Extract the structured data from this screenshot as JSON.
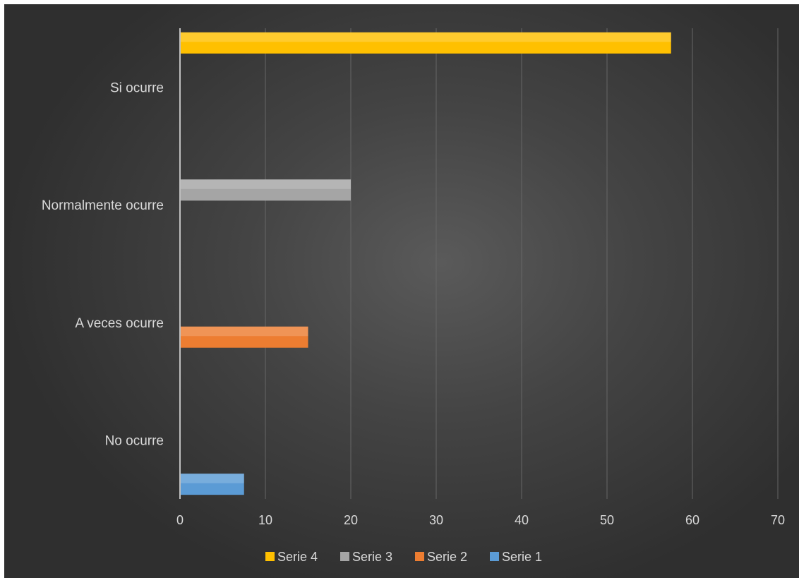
{
  "chart_data": {
    "type": "bar",
    "orientation": "horizontal",
    "categories": [
      "No ocurre",
      "A veces ocurre",
      "Normalmente ocurre",
      "Si ocurre"
    ],
    "series": [
      {
        "name": "Serie 1",
        "color": "#5b9bd5",
        "values": [
          7.5,
          null,
          null,
          null
        ]
      },
      {
        "name": "Serie 2",
        "color": "#ed7d31",
        "values": [
          null,
          15,
          null,
          null
        ]
      },
      {
        "name": "Serie 3",
        "color": "#a5a5a5",
        "values": [
          null,
          null,
          20,
          null
        ]
      },
      {
        "name": "Serie 4",
        "color": "#ffc000",
        "values": [
          null,
          null,
          null,
          57.5
        ]
      }
    ],
    "xlim": [
      0,
      70
    ],
    "xticks": [
      0,
      10,
      20,
      30,
      40,
      50,
      60,
      70
    ],
    "grid": true,
    "legend_position": "bottom",
    "legend_order": [
      "Serie 4",
      "Serie 3",
      "Serie 2",
      "Serie 1"
    ]
  }
}
